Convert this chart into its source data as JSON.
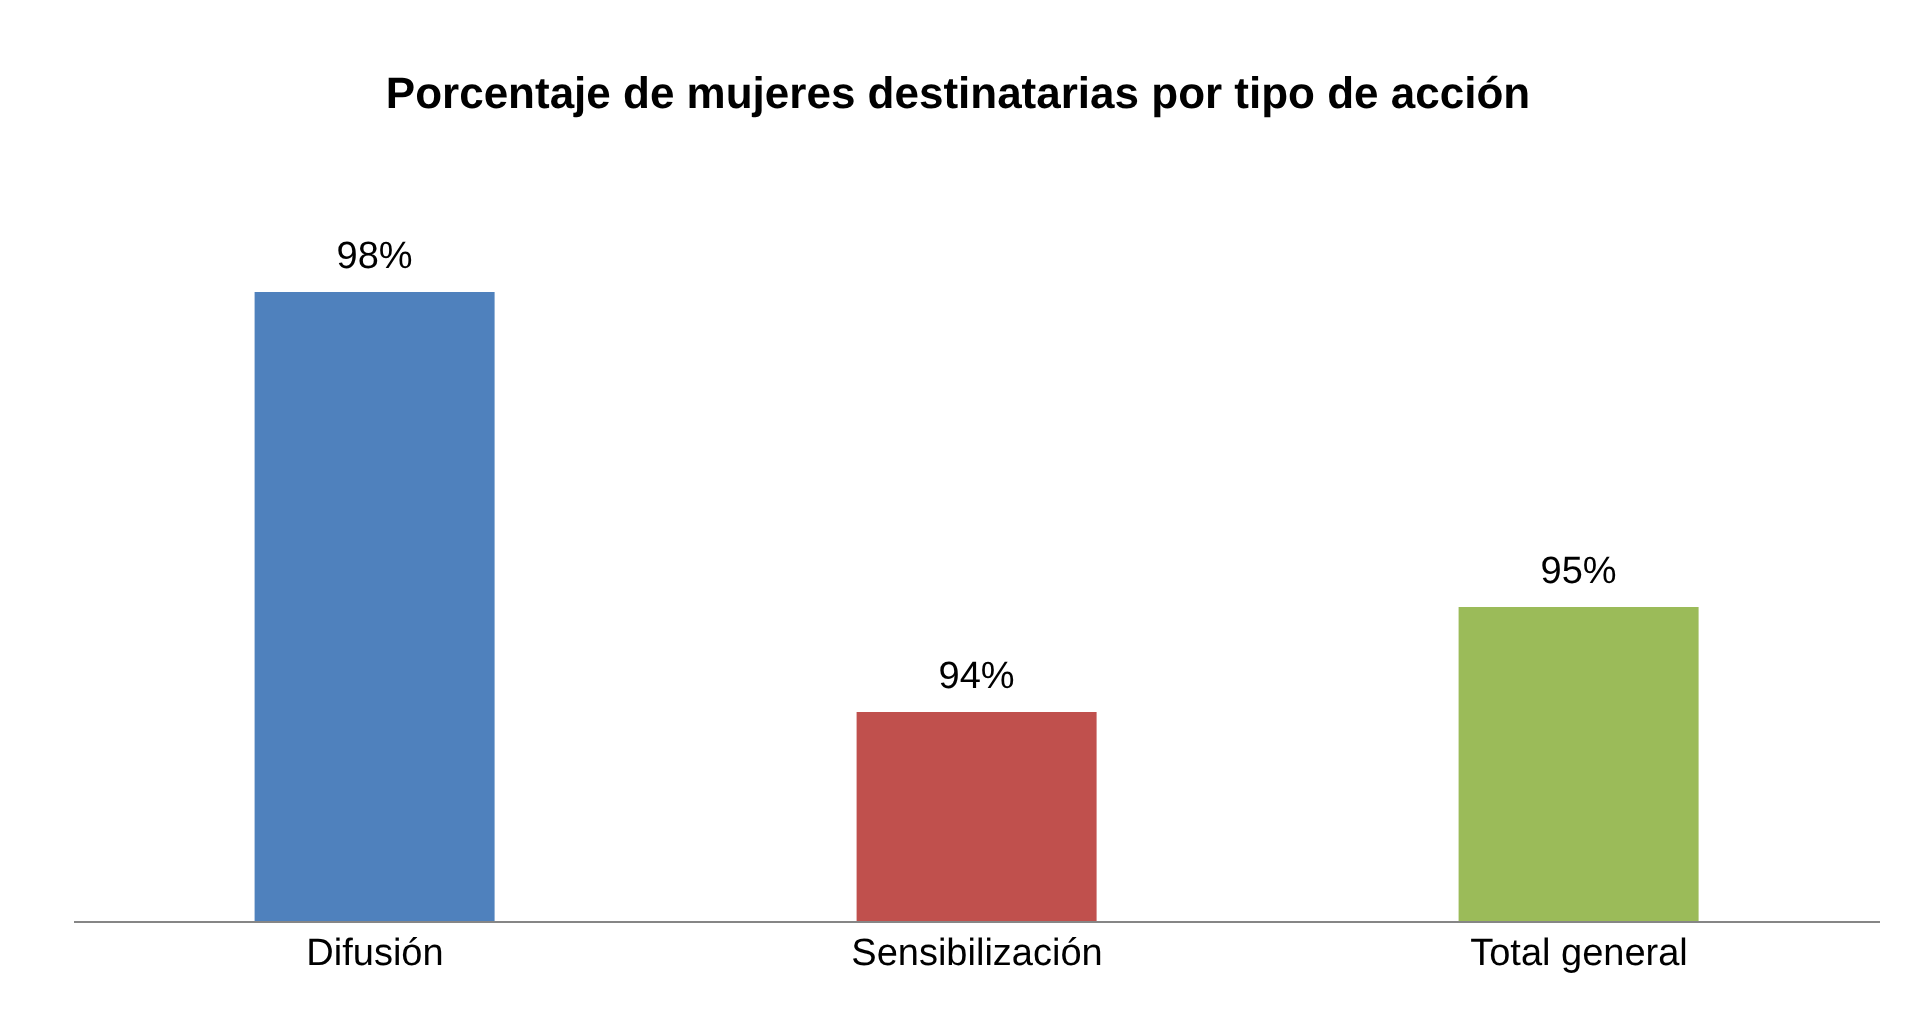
{
  "chart_data": {
    "type": "bar",
    "title": "Porcentaje de mujeres destinatarias por tipo de acción",
    "categories": [
      "Difusión",
      "Sensibilización",
      "Total general"
    ],
    "values": [
      98,
      94,
      95
    ],
    "colors": [
      "#4f81bd",
      "#c0504d",
      "#9bbb59"
    ],
    "value_labels": [
      "98%",
      "94%",
      "95%"
    ],
    "ylim": [
      92,
      98
    ],
    "tick_labels": "x",
    "grid": false,
    "legend": false
  }
}
